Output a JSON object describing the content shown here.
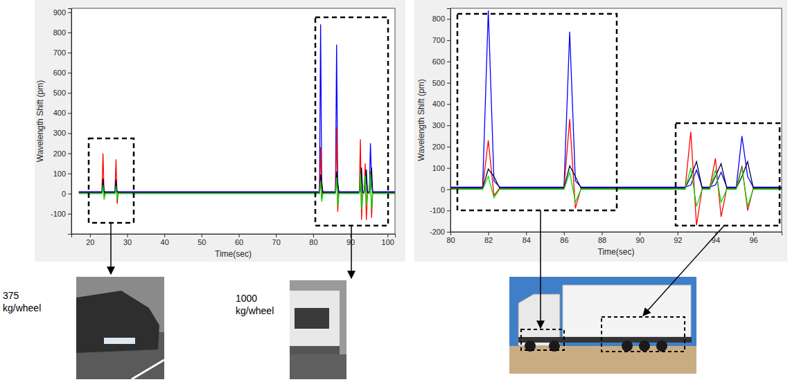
{
  "chart_data": [
    {
      "type": "line",
      "x_label": "Time(sec)",
      "y_label": "Wavelength Shift (pm)",
      "xlim": [
        15,
        102
      ],
      "xticks": [
        20,
        30,
        40,
        50,
        60,
        70,
        80,
        90,
        100
      ],
      "ylim": [
        -200,
        920
      ],
      "yticks": [
        -100,
        0,
        100,
        200,
        300,
        400,
        500,
        600,
        700,
        800,
        900
      ],
      "grid": false,
      "x": [
        17,
        23.2,
        23.5,
        23.8,
        24.1,
        26.7,
        27,
        27.3,
        27.6,
        81.7,
        82,
        82.3,
        82.6,
        86,
        86.3,
        86.6,
        86.9,
        92.4,
        92.7,
        93,
        93.3,
        93.7,
        94,
        94.3,
        94.6,
        95.1,
        95.4,
        95.7,
        96,
        102
      ],
      "series": [
        {
          "color": "#0000ff",
          "values": [
            10,
            10,
            10,
            10,
            10,
            10,
            10,
            10,
            10,
            10,
            840,
            40,
            10,
            10,
            740,
            40,
            10,
            10,
            20,
            90,
            10,
            10,
            20,
            80,
            10,
            10,
            250,
            60,
            10,
            10
          ]
        },
        {
          "color": "#ff0000",
          "values": [
            5,
            5,
            200,
            -10,
            5,
            5,
            170,
            -50,
            5,
            5,
            230,
            -30,
            5,
            5,
            330,
            -90,
            5,
            5,
            270,
            -130,
            5,
            5,
            150,
            -130,
            5,
            5,
            110,
            -120,
            5,
            5
          ]
        },
        {
          "color": "#00003c",
          "values": [
            5,
            5,
            75,
            10,
            5,
            5,
            70,
            10,
            5,
            5,
            95,
            60,
            5,
            5,
            110,
            60,
            5,
            5,
            60,
            130,
            5,
            5,
            60,
            120,
            5,
            5,
            60,
            130,
            5,
            5
          ]
        },
        {
          "color": "#00dd00",
          "values": [
            0,
            0,
            40,
            -30,
            0,
            0,
            35,
            -30,
            0,
            0,
            60,
            -40,
            0,
            0,
            80,
            -60,
            0,
            0,
            100,
            -80,
            0,
            0,
            90,
            -60,
            0,
            0,
            100,
            -80,
            0,
            0
          ]
        }
      ],
      "annotations": [
        "375 kg/wheel",
        "1000 kg/wheel"
      ]
    },
    {
      "type": "line",
      "x_label": "Time(sec)",
      "y_label": "Wavelength Shift (pm)",
      "xlim": [
        80,
        97.5
      ],
      "xticks": [
        80,
        82,
        84,
        86,
        88,
        90,
        92,
        94,
        96
      ],
      "ylim": [
        -200,
        850
      ],
      "yticks": [
        -200,
        -100,
        0,
        100,
        200,
        300,
        400,
        500,
        600,
        700,
        800
      ],
      "grid": false,
      "x": [
        80,
        81.7,
        82,
        82.3,
        82.6,
        86,
        86.3,
        86.6,
        86.9,
        92.4,
        92.7,
        93,
        93.3,
        93.7,
        94,
        94.3,
        94.6,
        95.1,
        95.4,
        95.7,
        96,
        97.5
      ],
      "series": [
        {
          "color": "#0000ff",
          "values": [
            10,
            10,
            840,
            40,
            10,
            10,
            740,
            40,
            10,
            10,
            20,
            90,
            10,
            10,
            20,
            80,
            10,
            10,
            250,
            60,
            10,
            10
          ]
        },
        {
          "color": "#ff0000",
          "values": [
            5,
            5,
            230,
            -30,
            5,
            5,
            330,
            -90,
            5,
            5,
            270,
            -170,
            5,
            5,
            145,
            -130,
            5,
            5,
            110,
            -100,
            5,
            5
          ]
        },
        {
          "color": "#00003c",
          "values": [
            5,
            5,
            95,
            60,
            5,
            5,
            110,
            60,
            5,
            5,
            60,
            130,
            5,
            5,
            60,
            120,
            5,
            5,
            60,
            130,
            5,
            5
          ]
        },
        {
          "color": "#00dd00",
          "values": [
            0,
            0,
            60,
            -40,
            0,
            0,
            80,
            -60,
            0,
            0,
            100,
            -80,
            0,
            0,
            90,
            -60,
            0,
            0,
            100,
            -80,
            0,
            0
          ]
        }
      ]
    }
  ]
}
